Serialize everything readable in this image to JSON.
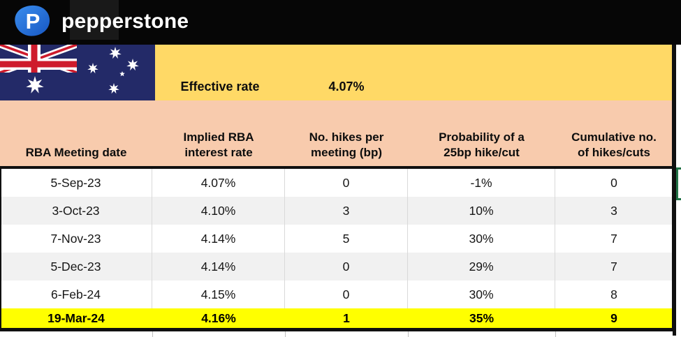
{
  "topbar": {
    "wordmark": "pepperstone",
    "logo_letter": "P"
  },
  "flag": {
    "name": "Australia flag"
  },
  "summary": {
    "label": "Effective rate",
    "value": "4.07%"
  },
  "table": {
    "headers": [
      {
        "label": "RBA Meeting date",
        "lines": [
          "RBA Meeting date"
        ]
      },
      {
        "label": "Implied RBA interest rate",
        "lines": [
          "Implied RBA",
          "interest rate"
        ]
      },
      {
        "label": "No. hikes per meeting (bp)",
        "lines": [
          "No. hikes per",
          "meeting (bp)"
        ]
      },
      {
        "label": "Probability of a 25bp hike/cut",
        "lines": [
          "Probability of a",
          "25bp hike/cut"
        ]
      },
      {
        "label": "Cumulative no. of hikes/cuts",
        "lines": [
          "Cumulative no.",
          "of hikes/cuts"
        ]
      }
    ],
    "rows": [
      [
        "5-Sep-23",
        "4.07%",
        "0",
        "-1%",
        "0"
      ],
      [
        "3-Oct-23",
        "4.10%",
        "3",
        "10%",
        "3"
      ],
      [
        "7-Nov-23",
        "4.14%",
        "5",
        "30%",
        "7"
      ],
      [
        "5-Dec-23",
        "4.14%",
        "0",
        "29%",
        "7"
      ],
      [
        "6-Feb-24",
        "4.15%",
        "0",
        "30%",
        "8"
      ],
      [
        "19-Mar-24",
        "4.16%",
        "1",
        "35%",
        "9"
      ]
    ],
    "highlight_row": 5
  },
  "colors": {
    "topbar_bg": "#060606",
    "brand_blue": "#2470DF",
    "band_yellow": "#FFD966",
    "header_peach": "#F8CBAD",
    "row_stripe": "#F1F1F1",
    "highlight_yellow": "#FFFF00",
    "flag_navy": "#232A68",
    "flag_red": "#CE1B2C",
    "selection_green": "#217346",
    "border_black": "#101010"
  }
}
